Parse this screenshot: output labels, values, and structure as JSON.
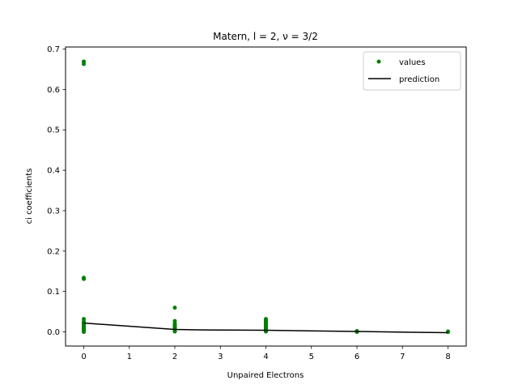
{
  "chart_data": {
    "type": "scatter",
    "title": "Matern, l = 2, ν = 3/2",
    "xlabel": "Unpaired Electrons",
    "ylabel": "ci coefficients",
    "xlim": [
      -0.4,
      8.4
    ],
    "ylim": [
      -0.035,
      0.705
    ],
    "xticks": [
      0,
      1,
      2,
      3,
      4,
      5,
      6,
      7,
      8
    ],
    "yticks": [
      0.0,
      0.1,
      0.2,
      0.3,
      0.4,
      0.5,
      0.6,
      0.7
    ],
    "ytick_labels": [
      "0.0",
      "0.1",
      "0.2",
      "0.3",
      "0.4",
      "0.5",
      "0.6",
      "0.7"
    ],
    "grid": false,
    "legend": {
      "placement": "top-right",
      "entries": [
        "values",
        "prediction"
      ]
    },
    "colors": {
      "values": "#008000",
      "prediction": "#000000"
    },
    "series": [
      {
        "name": "values",
        "kind": "scatter",
        "x": [
          0,
          0,
          0,
          0,
          0,
          0,
          0,
          0,
          0,
          0,
          0,
          0,
          0,
          0,
          0,
          0,
          0,
          0,
          0,
          0,
          0,
          0,
          0,
          2,
          2,
          2,
          2,
          2,
          2,
          2,
          2,
          2,
          2,
          2,
          2,
          2,
          2,
          2,
          4,
          4,
          4,
          4,
          4,
          4,
          4,
          4,
          4,
          4,
          4,
          4,
          4,
          4,
          4,
          4,
          4,
          4,
          4,
          4,
          4,
          4,
          4,
          6,
          6,
          6,
          8,
          8
        ],
        "y": [
          0.669,
          0.663,
          0.134,
          0.131,
          0.032,
          0.026,
          0.022,
          0.02,
          0.018,
          0.015,
          0.013,
          0.011,
          0.01,
          0.009,
          0.008,
          0.007,
          0.006,
          0.005,
          0.004,
          0.003,
          0.002,
          0.001,
          0.0,
          0.06,
          0.027,
          0.02,
          0.017,
          0.014,
          0.012,
          0.01,
          0.008,
          0.007,
          0.006,
          0.005,
          0.004,
          0.003,
          0.002,
          0.001,
          0.032,
          0.029,
          0.027,
          0.025,
          0.023,
          0.021,
          0.019,
          0.017,
          0.015,
          0.014,
          0.013,
          0.012,
          0.011,
          0.01,
          0.009,
          0.008,
          0.007,
          0.006,
          0.005,
          0.004,
          0.003,
          0.002,
          0.001,
          0.002,
          0.001,
          0.0,
          0.001,
          0.0
        ]
      },
      {
        "name": "prediction",
        "kind": "line",
        "x": [
          0,
          2,
          2.5,
          4,
          6,
          8
        ],
        "y": [
          0.022,
          0.006,
          0.005,
          0.004,
          0.001,
          -0.002
        ]
      }
    ]
  }
}
